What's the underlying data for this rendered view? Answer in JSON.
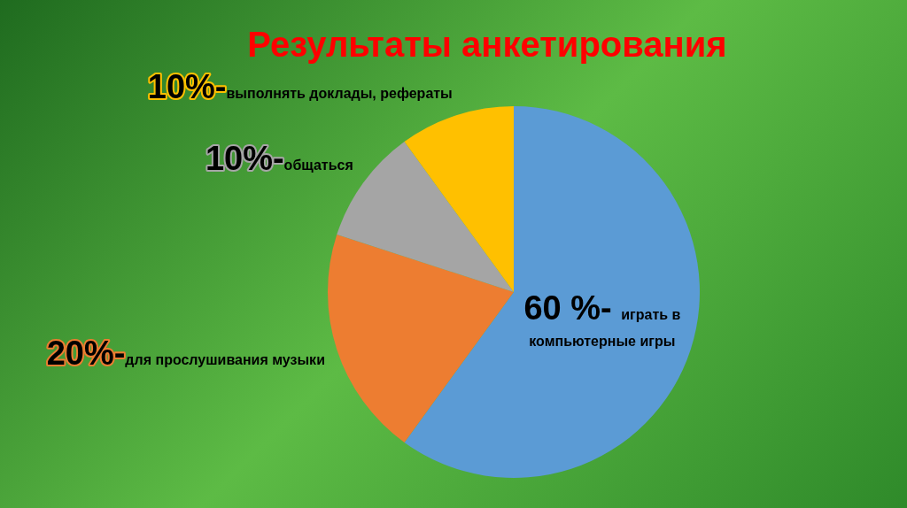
{
  "chart_data": {
    "type": "pie",
    "title": "Результаты анкетирования",
    "categories": [
      "играть в компьютерные игры",
      "для прослушивания музыки",
      "общаться",
      "выполнять доклады, рефераты"
    ],
    "values": [
      60,
      20,
      10,
      10
    ],
    "colors": [
      "#5b9bd5",
      "#ed7d31",
      "#a5a5a5",
      "#ffc000"
    ],
    "value_labels": [
      "60 %-",
      "20%-",
      "10%-",
      "10%-"
    ]
  }
}
